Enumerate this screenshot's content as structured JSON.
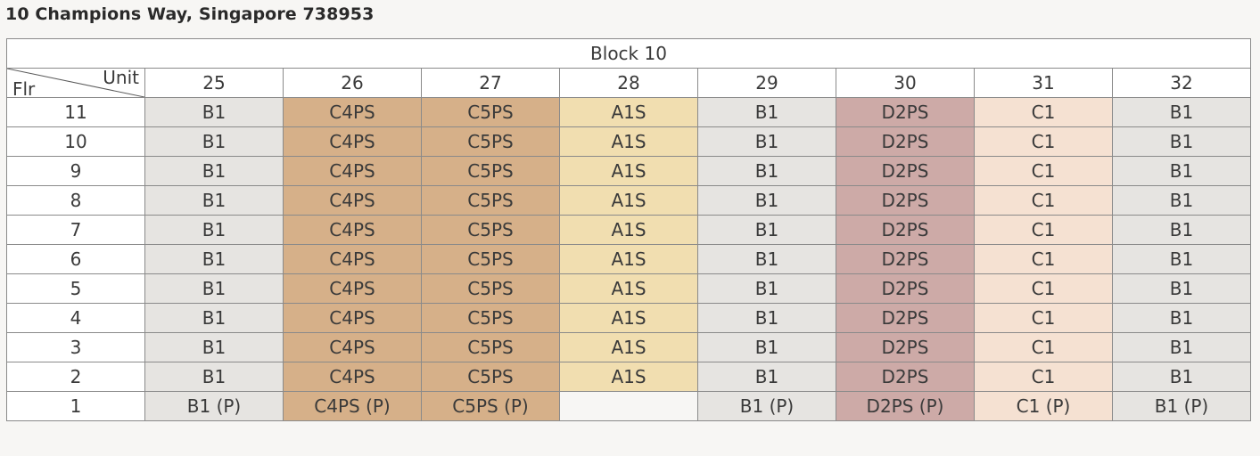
{
  "address": "10 Champions Way, Singapore 738953",
  "block_title": "Block 10",
  "corner": {
    "unit_label": "Unit",
    "floor_label": "Flr"
  },
  "units": [
    "25",
    "26",
    "27",
    "28",
    "29",
    "30",
    "31",
    "32"
  ],
  "colors": {
    "B1": "#e6e4e1",
    "C4PS": "#d6b089",
    "C5PS": "#d6b089",
    "A1S": "#f1deb0",
    "D2PS": "#cdaaa7",
    "C1": "#f5e1d2"
  },
  "rows": [
    {
      "floor": "11",
      "cells": [
        "B1",
        "C4PS",
        "C5PS",
        "A1S",
        "B1",
        "D2PS",
        "C1",
        "B1"
      ]
    },
    {
      "floor": "10",
      "cells": [
        "B1",
        "C4PS",
        "C5PS",
        "A1S",
        "B1",
        "D2PS",
        "C1",
        "B1"
      ]
    },
    {
      "floor": "9",
      "cells": [
        "B1",
        "C4PS",
        "C5PS",
        "A1S",
        "B1",
        "D2PS",
        "C1",
        "B1"
      ]
    },
    {
      "floor": "8",
      "cells": [
        "B1",
        "C4PS",
        "C5PS",
        "A1S",
        "B1",
        "D2PS",
        "C1",
        "B1"
      ]
    },
    {
      "floor": "7",
      "cells": [
        "B1",
        "C4PS",
        "C5PS",
        "A1S",
        "B1",
        "D2PS",
        "C1",
        "B1"
      ]
    },
    {
      "floor": "6",
      "cells": [
        "B1",
        "C4PS",
        "C5PS",
        "A1S",
        "B1",
        "D2PS",
        "C1",
        "B1"
      ]
    },
    {
      "floor": "5",
      "cells": [
        "B1",
        "C4PS",
        "C5PS",
        "A1S",
        "B1",
        "D2PS",
        "C1",
        "B1"
      ]
    },
    {
      "floor": "4",
      "cells": [
        "B1",
        "C4PS",
        "C5PS",
        "A1S",
        "B1",
        "D2PS",
        "C1",
        "B1"
      ]
    },
    {
      "floor": "3",
      "cells": [
        "B1",
        "C4PS",
        "C5PS",
        "A1S",
        "B1",
        "D2PS",
        "C1",
        "B1"
      ]
    },
    {
      "floor": "2",
      "cells": [
        "B1",
        "C4PS",
        "C5PS",
        "A1S",
        "B1",
        "D2PS",
        "C1",
        "B1"
      ]
    },
    {
      "floor": "1",
      "cells": [
        "B1 (P)",
        "C4PS (P)",
        "C5PS (P)",
        "",
        "B1 (P)",
        "D2PS (P)",
        "C1 (P)",
        "B1 (P)"
      ]
    }
  ]
}
